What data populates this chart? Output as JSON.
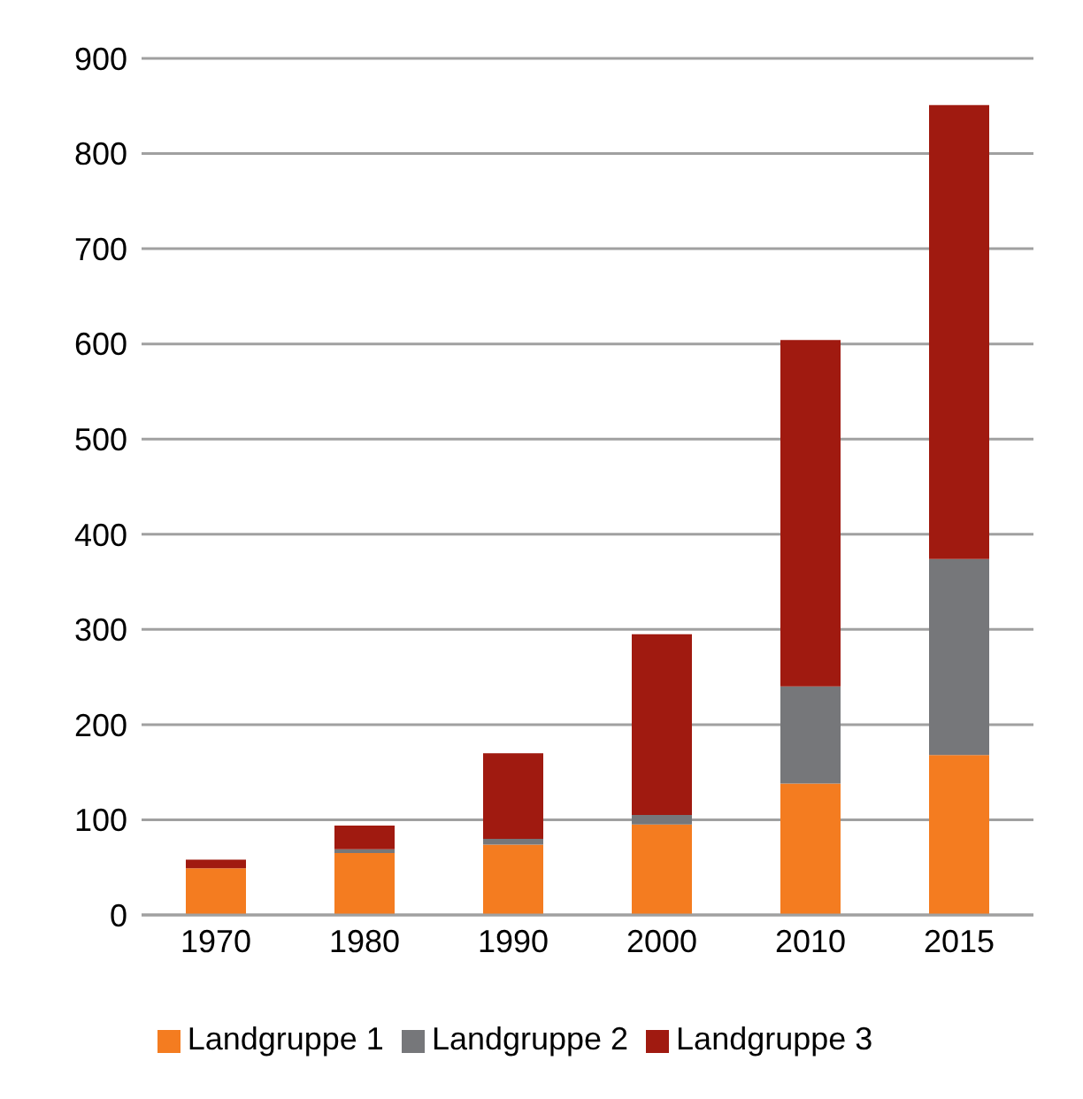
{
  "chart_data": {
    "type": "bar",
    "stacked": true,
    "categories": [
      "1970",
      "1980",
      "1990",
      "2000",
      "2010",
      "2015"
    ],
    "series": [
      {
        "name": "Landgruppe 1",
        "color": "#f47c20",
        "values": [
          49,
          65,
          74,
          95,
          138,
          168
        ]
      },
      {
        "name": "Landgruppe 2",
        "color": "#76777a",
        "values": [
          0,
          4,
          6,
          10,
          102,
          206
        ]
      },
      {
        "name": "Landgruppe 3",
        "color": "#a01a10",
        "values": [
          9,
          25,
          90,
          190,
          364,
          477
        ]
      }
    ],
    "ylim": [
      0,
      900
    ],
    "yticks": [
      0,
      100,
      200,
      300,
      400,
      500,
      600,
      700,
      800,
      900
    ],
    "grid": "y",
    "legend": "bottom"
  }
}
